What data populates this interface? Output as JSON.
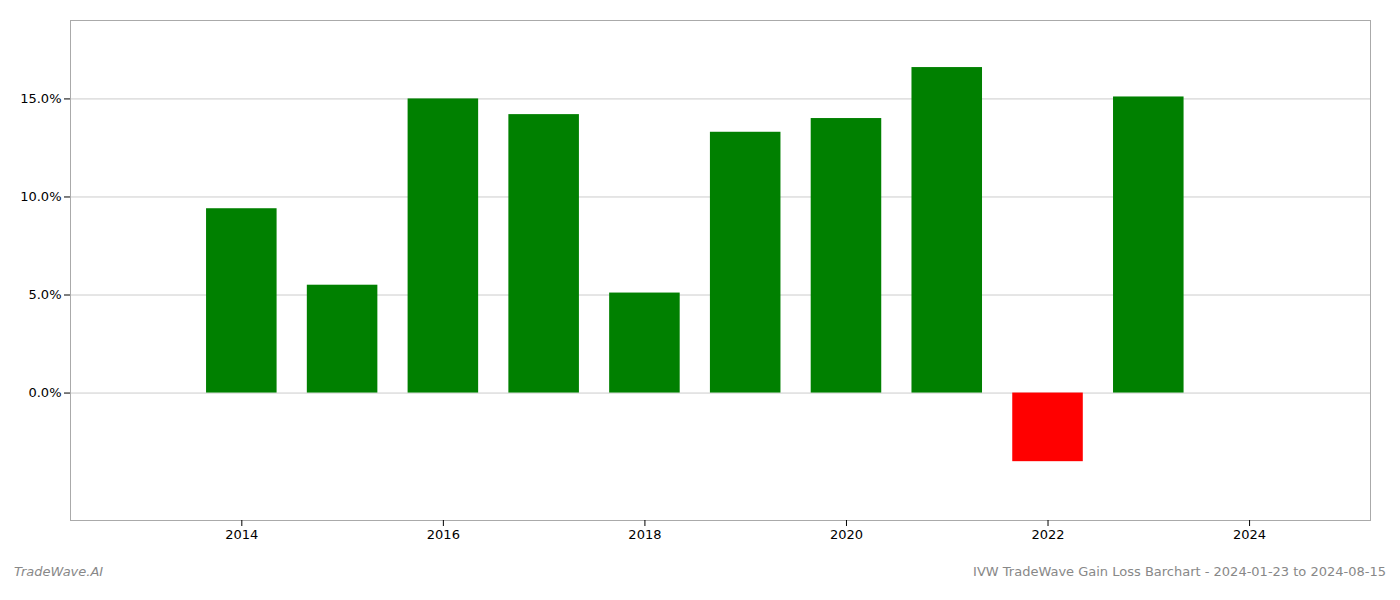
{
  "chart_data": {
    "type": "bar",
    "x": [
      2014,
      2015,
      2016,
      2017,
      2018,
      2019,
      2020,
      2021,
      2022,
      2023
    ],
    "values": [
      0.094,
      0.055,
      0.15,
      0.142,
      0.051,
      0.133,
      0.14,
      0.166,
      -0.035,
      0.151
    ],
    "colors": [
      "#008000",
      "#008000",
      "#008000",
      "#008000",
      "#008000",
      "#008000",
      "#008000",
      "#008000",
      "#ff0000",
      "#008000"
    ],
    "xlim": [
      2012.3,
      2025.2
    ],
    "xticks": [
      2014,
      2016,
      2018,
      2020,
      2022,
      2024
    ],
    "ylim": [
      -0.065,
      0.19
    ],
    "yticks": [
      {
        "value": 0.0,
        "label": "0.0%"
      },
      {
        "value": 0.05,
        "label": "5.0%"
      },
      {
        "value": 0.1,
        "label": "10.0%"
      },
      {
        "value": 0.15,
        "label": "15.0%"
      }
    ],
    "grid": true,
    "annotations": [
      "TradeWave.AI",
      "IVW TradeWave Gain Loss Barchart - 2024-01-23 to 2024-08-15"
    ]
  }
}
